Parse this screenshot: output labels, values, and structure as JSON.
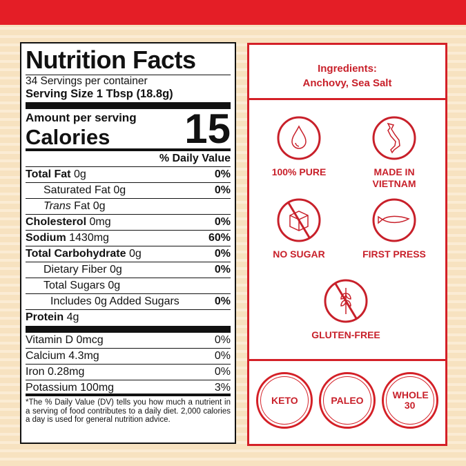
{
  "brand_color": "#e41e26",
  "nutrition": {
    "title": "Nutrition Facts",
    "servings": "34 Servings per container",
    "serving_size": "Serving Size  1 Tbsp (18.8g)",
    "amount_label": "Amount per serving",
    "calories_label": "Calories",
    "calories": "15",
    "dv_header": "% Daily Value",
    "rows": [
      {
        "name": "Total Fat",
        "amount": "0g",
        "dv": "0%"
      },
      {
        "name": "Saturated Fat 0g",
        "dv": "0%"
      },
      {
        "name": "Trans",
        "amount": "Fat 0g",
        "dv": ""
      },
      {
        "name": "Cholesterol",
        "amount": "0mg",
        "dv": "0%"
      },
      {
        "name": "Sodium",
        "amount": "1430mg",
        "dv": "60%"
      },
      {
        "name": "Total Carbohydrate",
        "amount": "0g",
        "dv": "0%"
      },
      {
        "name": "Dietary Fiber 0g",
        "dv": "0%"
      },
      {
        "name": "Total Sugars 0g",
        "dv": ""
      },
      {
        "name": "Includes 0g Added Sugars",
        "dv": "0%"
      },
      {
        "name": "Protein",
        "amount": "4g",
        "dv": ""
      }
    ],
    "vitamins": [
      {
        "name": "Vitamin D 0mcg",
        "dv": "0%"
      },
      {
        "name": "Calcium 4.3mg",
        "dv": "0%"
      },
      {
        "name": "Iron 0.28mg",
        "dv": "0%"
      },
      {
        "name": "Potassium 100mg",
        "dv": "3%"
      }
    ],
    "footnote": "*The % Daily Value (DV) tells you how much a nutrient in a serving of food contributes to a daily diet. 2,000 calories a day is used for general nutrition advice."
  },
  "ingredients": {
    "label": "Ingredients:",
    "value": "Anchovy, Sea Salt"
  },
  "badges": [
    {
      "icon": "water-drop-icon",
      "label": "100% PURE"
    },
    {
      "icon": "vietnam-map-icon",
      "label": "MADE IN VIETNAM"
    },
    {
      "icon": "no-sugar-cube-icon",
      "label": "NO SUGAR"
    },
    {
      "icon": "fish-icon",
      "label": "FIRST PRESS"
    },
    {
      "icon": "no-wheat-icon",
      "label": "GLUTEN-FREE"
    }
  ],
  "diets": [
    "KETO",
    "PALEO",
    "WHOLE 30"
  ]
}
